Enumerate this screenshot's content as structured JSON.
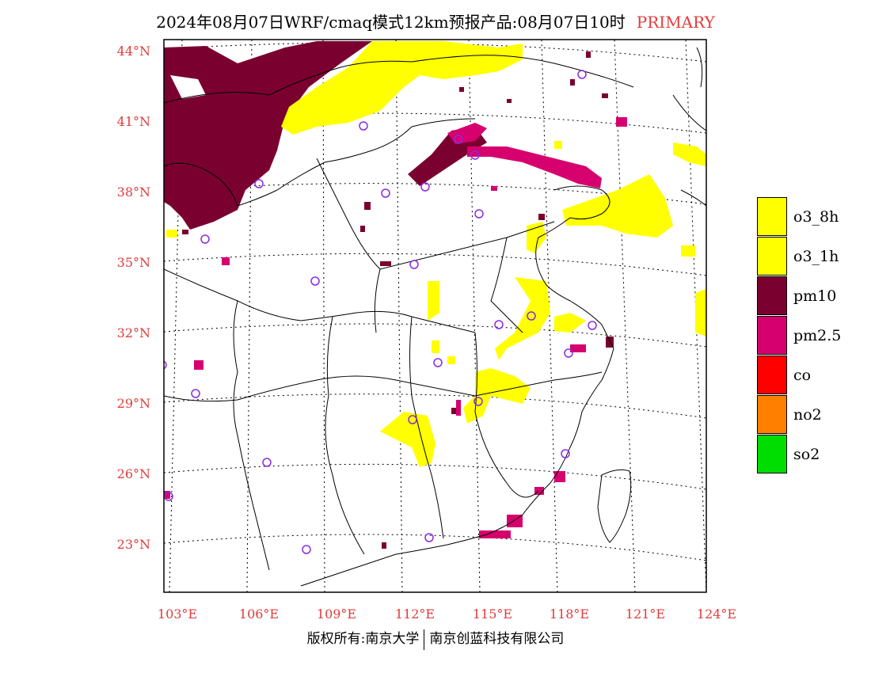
{
  "title": {
    "main": "2024年08月07日WRF/cmaq模式12km预报产品:08月07日10时",
    "tag": "PRIMARY"
  },
  "axes": {
    "lat_labels": [
      "44°N",
      "41°N",
      "38°N",
      "35°N",
      "32°N",
      "29°N",
      "26°N",
      "23°N"
    ],
    "lon_labels": [
      "103°E",
      "106°E",
      "109°E",
      "112°E",
      "115°E",
      "118°E",
      "121°E",
      "124°E"
    ]
  },
  "legend": [
    {
      "label": "o3_8h",
      "color": "#ffff00"
    },
    {
      "label": "o3_1h",
      "color": "#ffff00"
    },
    {
      "label": "pm10",
      "color": "#7a0030"
    },
    {
      "label": "pm2.5",
      "color": "#d6006e"
    },
    {
      "label": "co",
      "color": "#ff0000"
    },
    {
      "label": "no2",
      "color": "#ff8000"
    },
    {
      "label": "so2",
      "color": "#00dd00"
    }
  ],
  "footer": {
    "left": "版权所有:南京大学",
    "right": "南京创蓝科技有限公司"
  },
  "colors": {
    "tick_text": "#e23b3b",
    "o3": "#ffff00",
    "pm10": "#7a0030",
    "pm25": "#d6006e",
    "site_marker": "#8a2be2"
  }
}
